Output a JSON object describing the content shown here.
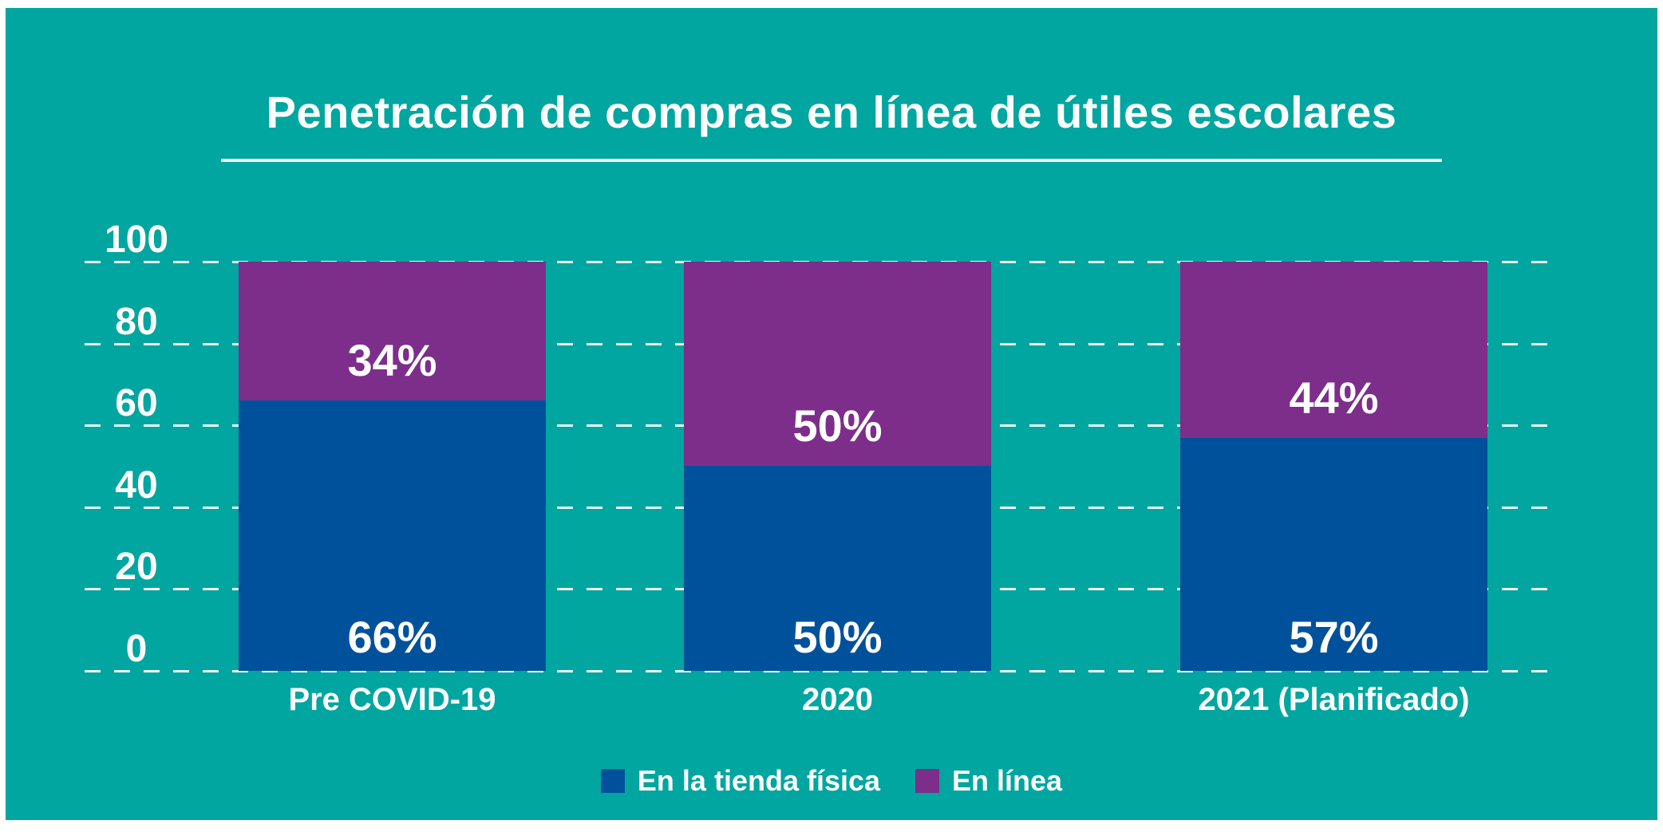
{
  "colors": {
    "background": "#00A69F",
    "text": "#FFFFFF",
    "store_blue": "#00519C",
    "online_purple": "#7C2E8A"
  },
  "title": "Penetración de compras en línea de útiles escolares",
  "chart_data": {
    "type": "bar",
    "stacked": true,
    "title": "Penetración de compras en línea de útiles escolares",
    "categories": [
      "Pre COVID-19",
      "2020",
      "2021 (Planificado)"
    ],
    "series": [
      {
        "name": "En la tienda física",
        "values": [
          66,
          50,
          57
        ],
        "labels": [
          "66%",
          "50%",
          "57%"
        ],
        "color": "#00519C"
      },
      {
        "name": "En línea",
        "values": [
          34,
          50,
          44
        ],
        "labels": [
          "34%",
          "50%",
          "44%"
        ],
        "color": "#7C2E8A"
      }
    ],
    "xlabel": "",
    "ylabel": "",
    "ylim": [
      0,
      100
    ],
    "yticks": [
      0,
      20,
      40,
      60,
      80,
      100
    ],
    "grid": "dashed-horizontal-white",
    "legend_position": "bottom-center"
  }
}
